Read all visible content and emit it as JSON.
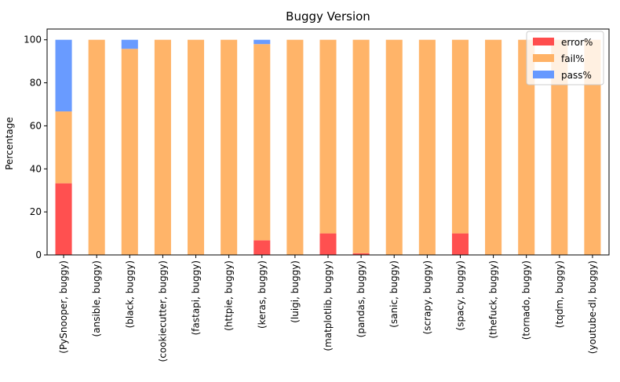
{
  "chart_data": {
    "type": "bar",
    "stacked": true,
    "title": "Buggy Version",
    "xlabel": "",
    "ylabel": "Percentage",
    "ylim": [
      0,
      105
    ],
    "yticks": [
      0,
      20,
      40,
      60,
      80,
      100
    ],
    "grid": false,
    "legend_position": "top-right",
    "categories": [
      "(PySnooper, buggy)",
      "(ansible, buggy)",
      "(black, buggy)",
      "(cookiecutter, buggy)",
      "(fastapi, buggy)",
      "(httpie, buggy)",
      "(keras, buggy)",
      "(luigi, buggy)",
      "(matplotlib, buggy)",
      "(pandas, buggy)",
      "(sanic, buggy)",
      "(scrapy, buggy)",
      "(spacy, buggy)",
      "(thefuck, buggy)",
      "(tornado, buggy)",
      "(tqdm, buggy)",
      "(youtube-dl, buggy)"
    ],
    "series": [
      {
        "name": "error%",
        "color": "#ff4d4d",
        "values": [
          33.3,
          0,
          0,
          0,
          0,
          0,
          6.8,
          0,
          10,
          0.8,
          0,
          0,
          10,
          0,
          0,
          0,
          0
        ]
      },
      {
        "name": "fail%",
        "color": "#ffb266",
        "values": [
          33.4,
          100,
          95.8,
          100,
          100,
          100,
          91.2,
          100,
          90,
          99.2,
          100,
          100,
          90,
          100,
          100,
          100,
          100
        ]
      },
      {
        "name": "pass%",
        "color": "#6699ff",
        "values": [
          33.3,
          0,
          4.2,
          0,
          0,
          0,
          2,
          0,
          0,
          0,
          0,
          0,
          0,
          0,
          0,
          0,
          0
        ]
      }
    ]
  }
}
